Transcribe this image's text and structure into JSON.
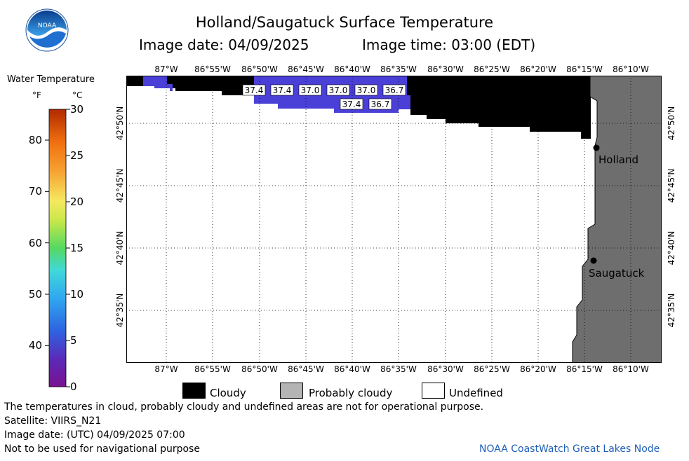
{
  "header": {
    "title": "Holland/Saugatuck Surface Temperature",
    "date_label": "Image date: 04/09/2025",
    "time_label": "Image time: 03:00 (EDT)",
    "logo_text": "NOAA"
  },
  "colorbar": {
    "title": "Water Temperature",
    "unit_f": "°F",
    "unit_c": "°C",
    "f_ticks": [
      "80",
      "70",
      "60",
      "50",
      "40"
    ],
    "c_ticks": [
      "30",
      "25",
      "20",
      "15",
      "10",
      "5",
      "0"
    ]
  },
  "map": {
    "lon_ticks": [
      "87°W",
      "86°55'W",
      "86°50'W",
      "86°45'W",
      "86°40'W",
      "86°35'W",
      "86°30'W",
      "86°25'W",
      "86°20'W",
      "86°15'W",
      "86°10'W"
    ],
    "lat_ticks": [
      "42°50'N",
      "42°45'N",
      "42°40'N",
      "42°35'N"
    ],
    "cities": [
      {
        "name": "Holland"
      },
      {
        "name": "Saugatuck"
      }
    ],
    "temperature_labels": [
      "37.4",
      "37.4",
      "37.0",
      "37.0",
      "37.0",
      "36.7",
      "37.4",
      "36.7"
    ],
    "colors": {
      "cloudy": "#000000",
      "probably_cloudy": "#6e6e6e",
      "undefined": "#ffffff",
      "water_cold": "#4a3fd6"
    }
  },
  "legend": {
    "cloudy": "Cloudy",
    "probably_cloudy": "Probably cloudy",
    "undefined": "Undefined"
  },
  "footer": {
    "note": "The temperatures in cloud, probably cloudy and undefined areas are not for operational purpose.",
    "satellite": "Satellite: VIIRS_N21",
    "utc_date": "Image date: (UTC) 04/09/2025  07:00",
    "nav_warning": "Not to be used for navigational purpose",
    "credit": "NOAA CoastWatch Great Lakes Node"
  }
}
